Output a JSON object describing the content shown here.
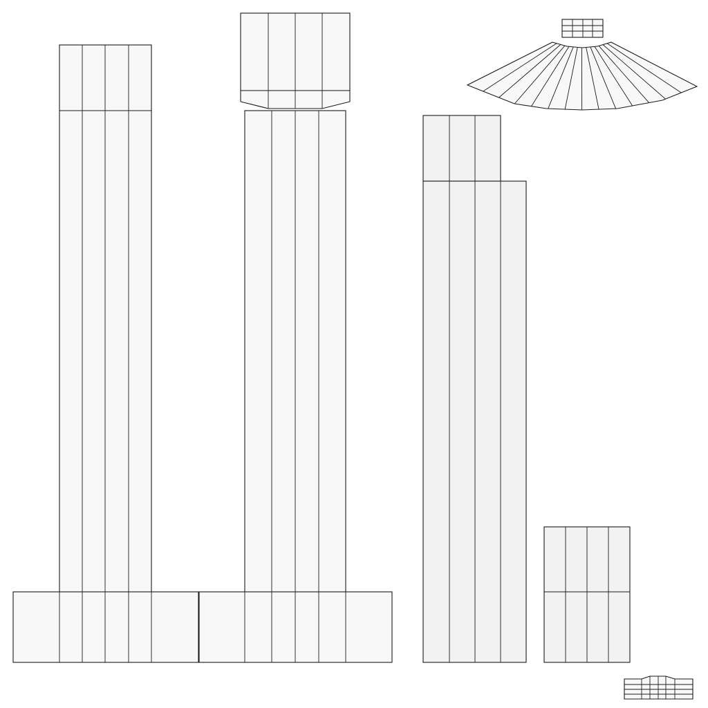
{
  "diagram": {
    "kind": "uv-layout-wireframe",
    "background": "#ffffff",
    "fill_light": "#f8f8f8",
    "fill_shaded": "#f2f2f2",
    "line_color": "#1a1a1a",
    "islands": [
      {
        "name": "left-column-uv-island",
        "divisions": 4
      },
      {
        "name": "center-column-uv-island",
        "divisions": 4
      },
      {
        "name": "center-capital-uv-island",
        "divisions": 4
      },
      {
        "name": "right-column-uv-island",
        "divisions": 4
      },
      {
        "name": "small-block-uv-island",
        "divisions": 4
      },
      {
        "name": "fan-arc-uv-island",
        "divisions": 14
      },
      {
        "name": "base-plinth-uv-island",
        "divisions": 9
      },
      {
        "name": "tiny-grid-top-uv-island",
        "divisions": 4
      },
      {
        "name": "tiny-grid-bottom-uv-island",
        "divisions": 5
      }
    ]
  }
}
